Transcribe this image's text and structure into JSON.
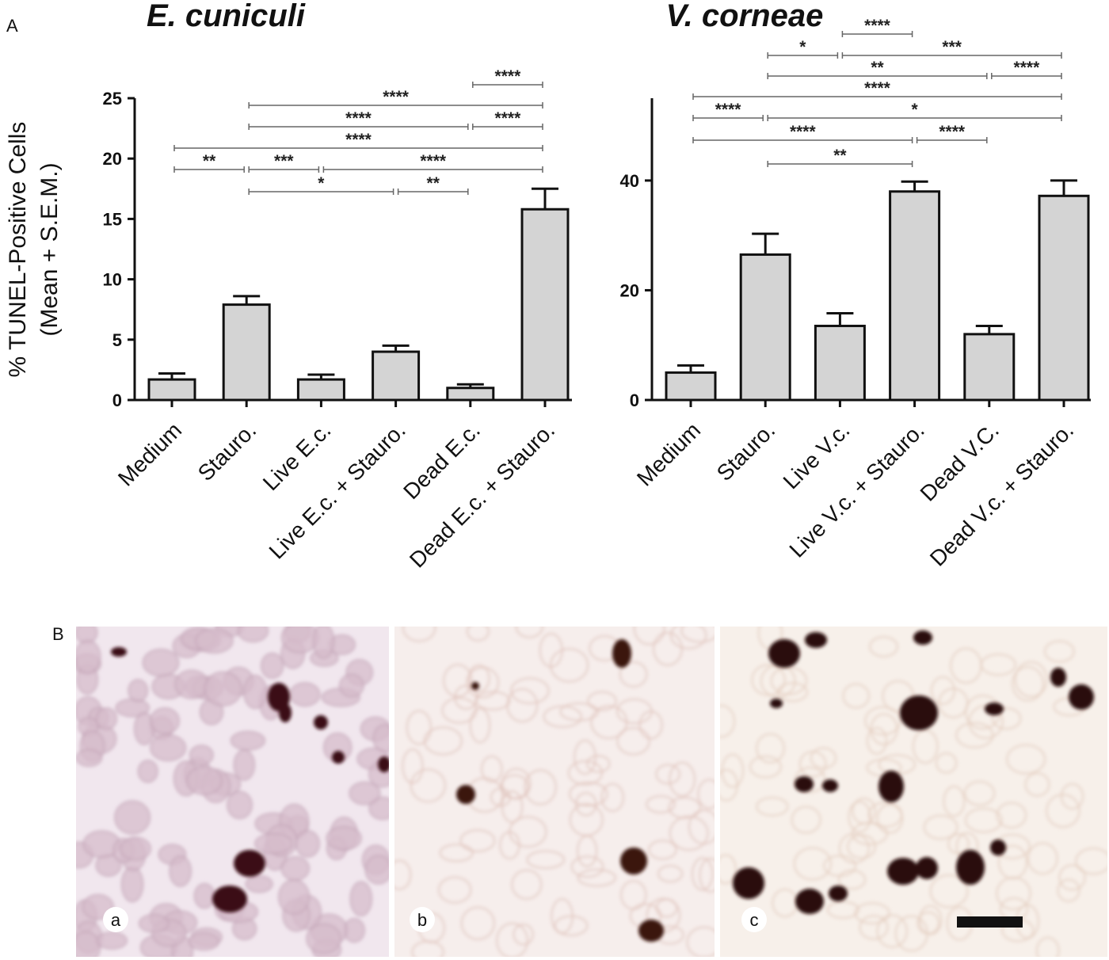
{
  "figure": {
    "panel_a": "A",
    "panel_b": "B",
    "ylabel_line1": "% TUNEL-Positive Cells",
    "ylabel_line2": "(Mean + S.E.M.)",
    "micrograph_labels": [
      "a",
      "b",
      "c"
    ]
  },
  "chart_data": [
    {
      "type": "bar",
      "title": "E. cuniculi",
      "ylabel": "% TUNEL-Positive Cells (Mean + S.E.M.)",
      "ylim": [
        0,
        25
      ],
      "yticks": [
        0,
        5,
        10,
        15,
        20,
        25
      ],
      "categories": [
        "Medium",
        "Stauro.",
        "Live E.c.",
        "Live E.c. + Stauro.",
        "Dead E.c.",
        "Dead E.c. + Stauro."
      ],
      "values": [
        1.7,
        7.9,
        1.7,
        4.0,
        1.0,
        15.8
      ],
      "errors": [
        0.5,
        0.7,
        0.4,
        0.5,
        0.3,
        1.7
      ],
      "bar_color": "#d4d4d4",
      "grid": false,
      "significance": [
        {
          "from": 4,
          "to": 5,
          "label": "****"
        },
        {
          "from": 1,
          "to": 5,
          "label": "****"
        },
        {
          "from": 1,
          "to": 4,
          "label": "****"
        },
        {
          "from": 4,
          "to": 5,
          "label": "****"
        },
        {
          "from": 0,
          "to": 5,
          "label": "****"
        },
        {
          "from": 0,
          "to": 1,
          "label": "**"
        },
        {
          "from": 1,
          "to": 2,
          "label": "***"
        },
        {
          "from": 2,
          "to": 5,
          "label": "****"
        },
        {
          "from": 1,
          "to": 3,
          "label": "*"
        },
        {
          "from": 3,
          "to": 4,
          "label": "**"
        }
      ]
    },
    {
      "type": "bar",
      "title": "V. corneae",
      "ylabel": "",
      "ylim": [
        0,
        55
      ],
      "yticks": [
        0,
        20,
        40
      ],
      "categories": [
        "Medium",
        "Stauro.",
        "Live V.c.",
        "Live V.c. + Stauro.",
        "Dead V.C.",
        "Dead V.c. + Stauro."
      ],
      "values": [
        5,
        26.5,
        13.5,
        38,
        12,
        37.2
      ],
      "errors": [
        1.3,
        3.8,
        2.3,
        1.8,
        1.5,
        2.8
      ],
      "bar_color": "#d4d4d4",
      "grid": false,
      "significance": [
        {
          "from": 2,
          "to": 3,
          "label": "****"
        },
        {
          "from": 1,
          "to": 2,
          "label": "*"
        },
        {
          "from": 2,
          "to": 5,
          "label": "***"
        },
        {
          "from": 1,
          "to": 4,
          "label": "**"
        },
        {
          "from": 4,
          "to": 5,
          "label": "****"
        },
        {
          "from": 0,
          "to": 5,
          "label": "****"
        },
        {
          "from": 0,
          "to": 1,
          "label": "****"
        },
        {
          "from": 1,
          "to": 5,
          "label": "*"
        },
        {
          "from": 0,
          "to": 3,
          "label": "****"
        },
        {
          "from": 3,
          "to": 4,
          "label": "****"
        },
        {
          "from": 1,
          "to": 3,
          "label": "**"
        }
      ]
    }
  ]
}
